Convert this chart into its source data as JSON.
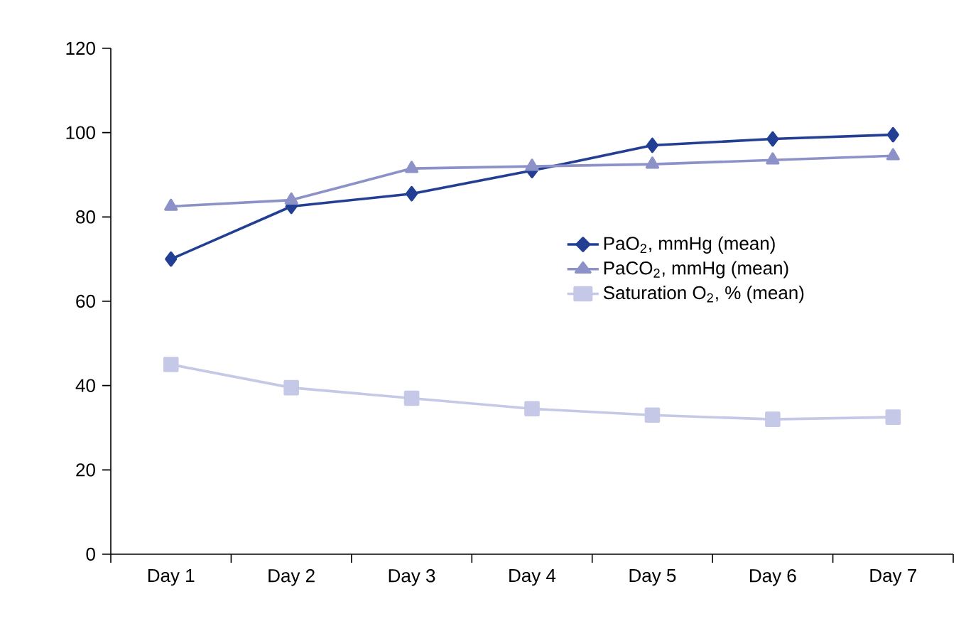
{
  "chart_data": {
    "type": "line",
    "categories": [
      "Day 1",
      "Day 2",
      "Day 3",
      "Day 4",
      "Day 5",
      "Day 6",
      "Day 7"
    ],
    "series": [
      {
        "name": "PaO$_{2}$, mmHg (mean)",
        "color": "#233f94",
        "marker": "diamond",
        "values": [
          70,
          82.5,
          85.5,
          91,
          97,
          98.5,
          99.5
        ]
      },
      {
        "name": "PaCO$_{2}$, mmHg (mean)",
        "color": "#8c92c8",
        "marker": "triangle",
        "values": [
          82.5,
          84,
          91.5,
          92,
          92.5,
          93.5,
          94.5
        ]
      },
      {
        "name": "Saturation O$_{2}$, % (mean)",
        "color": "#c5c8e6",
        "marker": "square",
        "values": [
          45,
          39.5,
          37,
          34.5,
          33,
          32,
          32.5
        ]
      }
    ],
    "ylim": [
      0,
      120
    ],
    "yticks": [
      0,
      20,
      40,
      60,
      80,
      100,
      120
    ],
    "grid": false,
    "legend": "right",
    "line_style": "solid"
  }
}
